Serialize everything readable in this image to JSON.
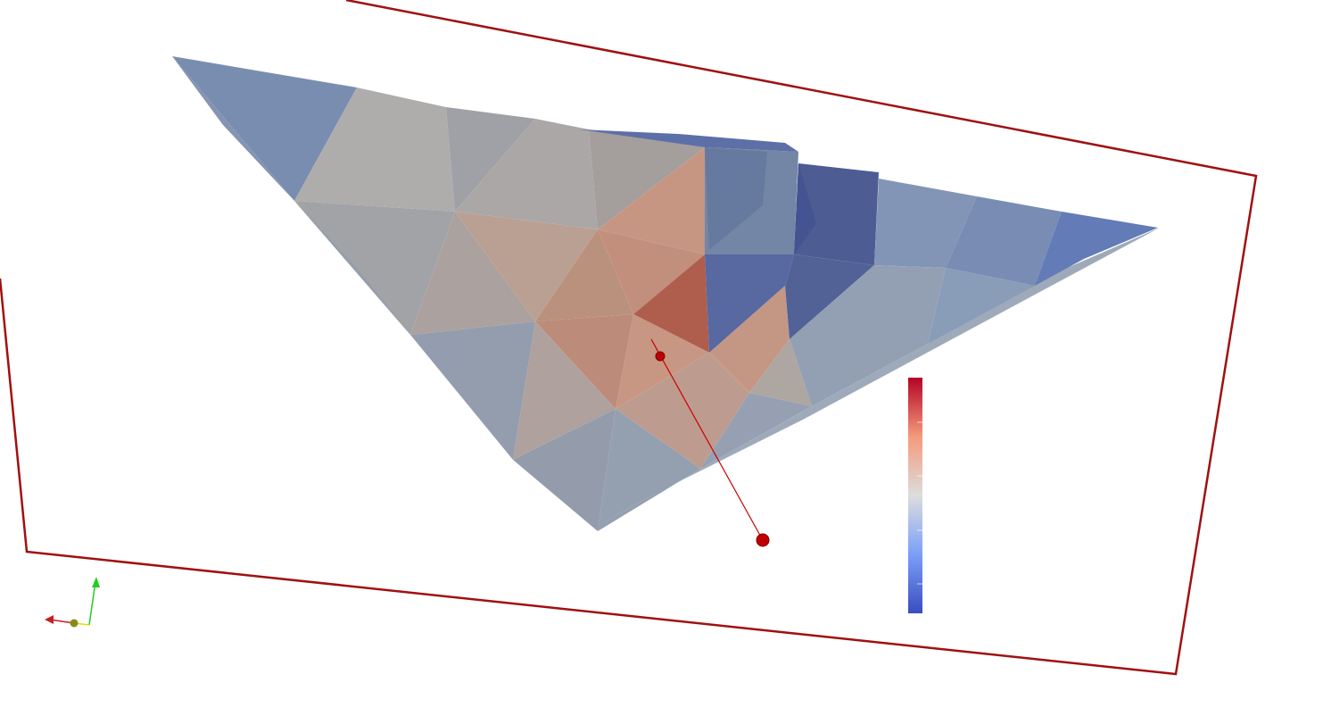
{
  "view": {
    "type": "3d-render-view",
    "background": "#ffffff"
  },
  "colormap": {
    "name": "cool-to-warm",
    "low": "#3b4cc0",
    "mid": "#dddddd",
    "high": "#b40426"
  },
  "outline": {
    "color": "#a01010"
  },
  "probe_line": {
    "color": "#cc0000"
  },
  "axes": {
    "x_color": "#c81e1e",
    "y_color": "#22cc22",
    "z_color": "#e6e000",
    "origin_color": "#8a8a1a"
  },
  "surface": {
    "opacity": 0.75,
    "faces": [
      {
        "color": "#5a78a8"
      },
      {
        "color": "#b3a9a4"
      },
      {
        "color": "#7d93b3"
      },
      {
        "color": "#a8a19f"
      },
      {
        "color": "#c7a698"
      },
      {
        "color": "#c1917d"
      },
      {
        "color": "#d39c82"
      },
      {
        "color": "#a67c76"
      },
      {
        "color": "#b8654e"
      }
    ]
  }
}
